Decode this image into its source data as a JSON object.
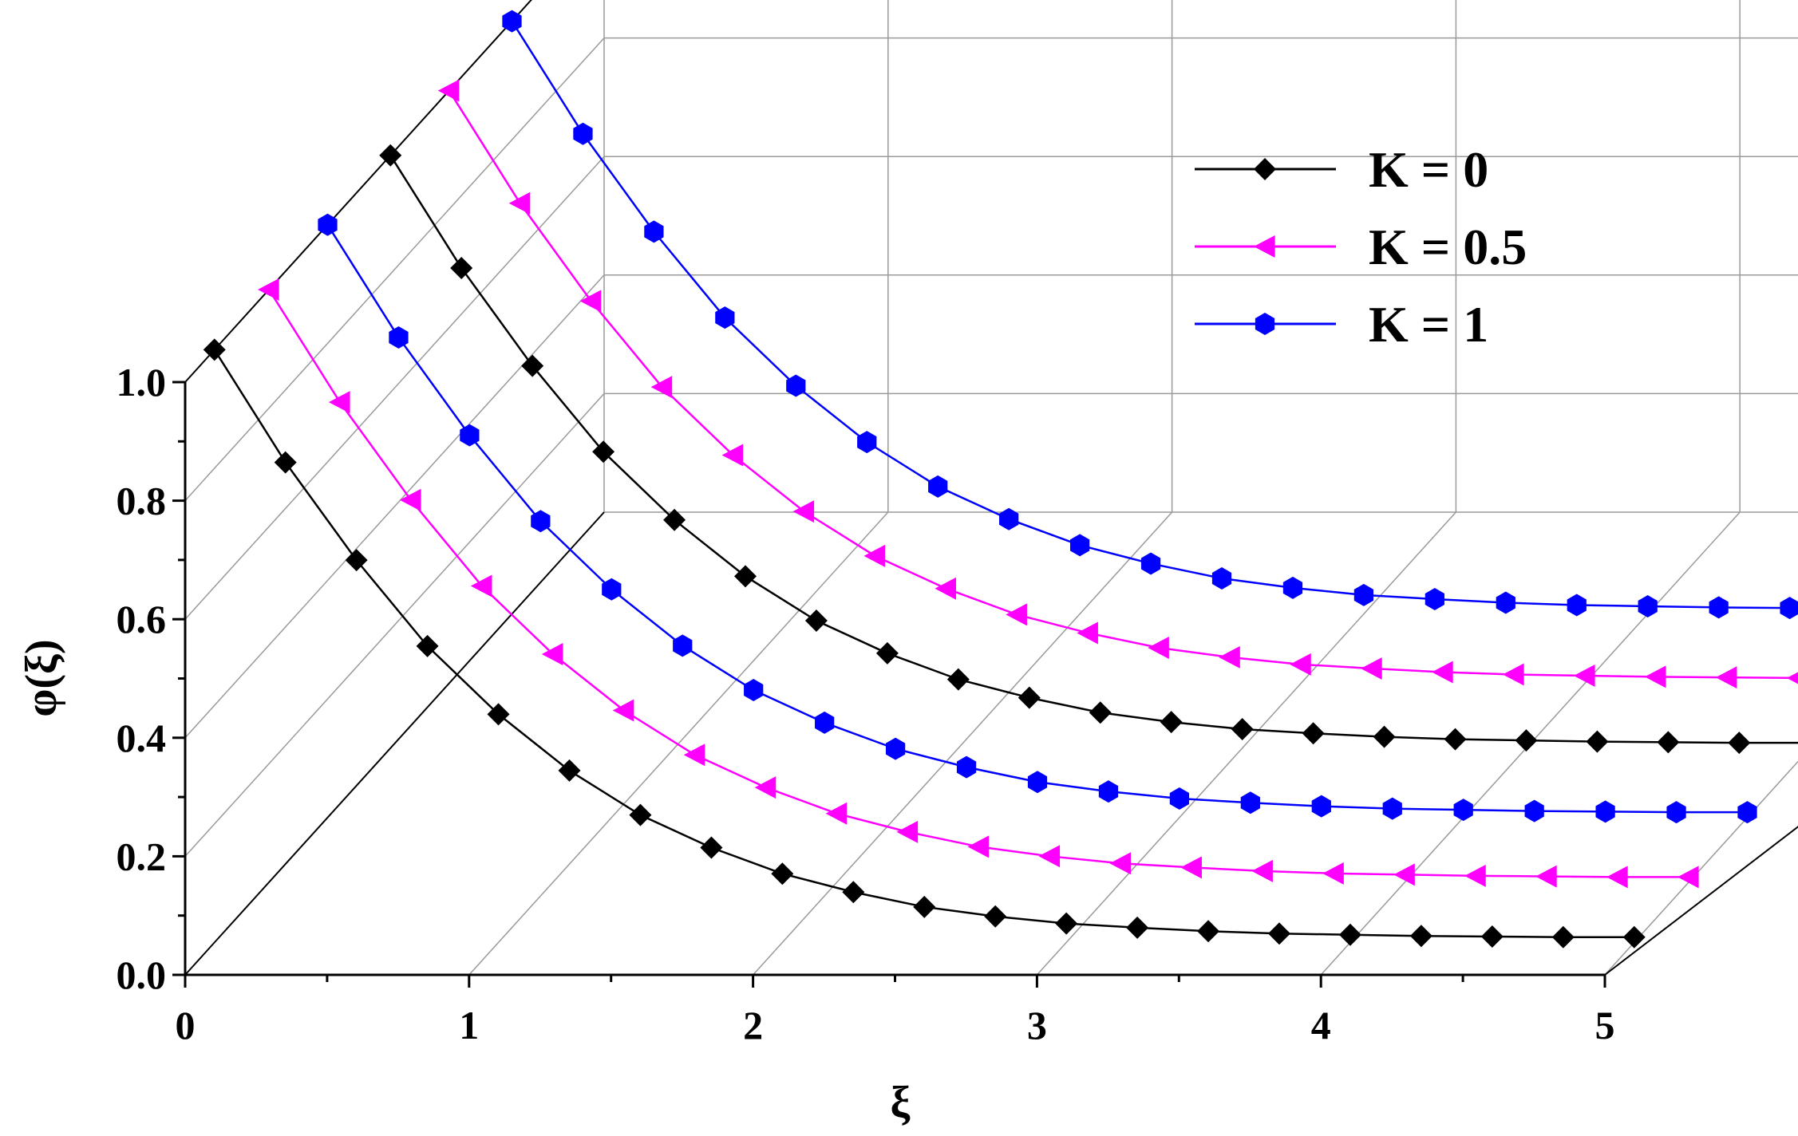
{
  "chart_data": {
    "type": "line",
    "style": "3d-waterfall",
    "xlabel": "ξ",
    "ylabel": "φ(ξ)",
    "xlim": [
      0,
      5
    ],
    "ylim": [
      0,
      1.0
    ],
    "x_ticks": [
      "0",
      "1",
      "2",
      "3",
      "4",
      "5"
    ],
    "y_ticks": [
      "0.0",
      "0.2",
      "0.4",
      "0.6",
      "0.8",
      "1.0"
    ],
    "grid": true,
    "legend_position": "top-right",
    "x": [
      0,
      0.25,
      0.5,
      0.75,
      1.0,
      1.25,
      1.5,
      1.75,
      2.0,
      2.25,
      2.5,
      2.75,
      3.0,
      3.25,
      3.5,
      3.75,
      4.0,
      4.25,
      4.5,
      4.75,
      5.0
    ],
    "series": [
      {
        "name": "K = 0",
        "color": "#000000",
        "marker": "diamond",
        "values": [
          1.0,
          0.81,
          0.645,
          0.5,
          0.385,
          0.29,
          0.215,
          0.16,
          0.116,
          0.085,
          0.06,
          0.044,
          0.032,
          0.025,
          0.019,
          0.015,
          0.013,
          0.011,
          0.01,
          0.009,
          0.009
        ]
      },
      {
        "name": "K = 0.5",
        "color": "#ff00ff",
        "marker": "triangle-left",
        "values": [
          1.0,
          0.81,
          0.645,
          0.5,
          0.385,
          0.29,
          0.215,
          0.16,
          0.116,
          0.085,
          0.06,
          0.044,
          0.032,
          0.025,
          0.019,
          0.015,
          0.013,
          0.011,
          0.01,
          0.009,
          0.009
        ]
      },
      {
        "name": "K = 1",
        "color": "#0000ff",
        "marker": "hexagon",
        "values": [
          1.0,
          0.81,
          0.645,
          0.5,
          0.385,
          0.29,
          0.215,
          0.16,
          0.116,
          0.085,
          0.06,
          0.044,
          0.032,
          0.025,
          0.019,
          0.015,
          0.013,
          0.011,
          0.01,
          0.009,
          0.009
        ]
      }
    ]
  }
}
